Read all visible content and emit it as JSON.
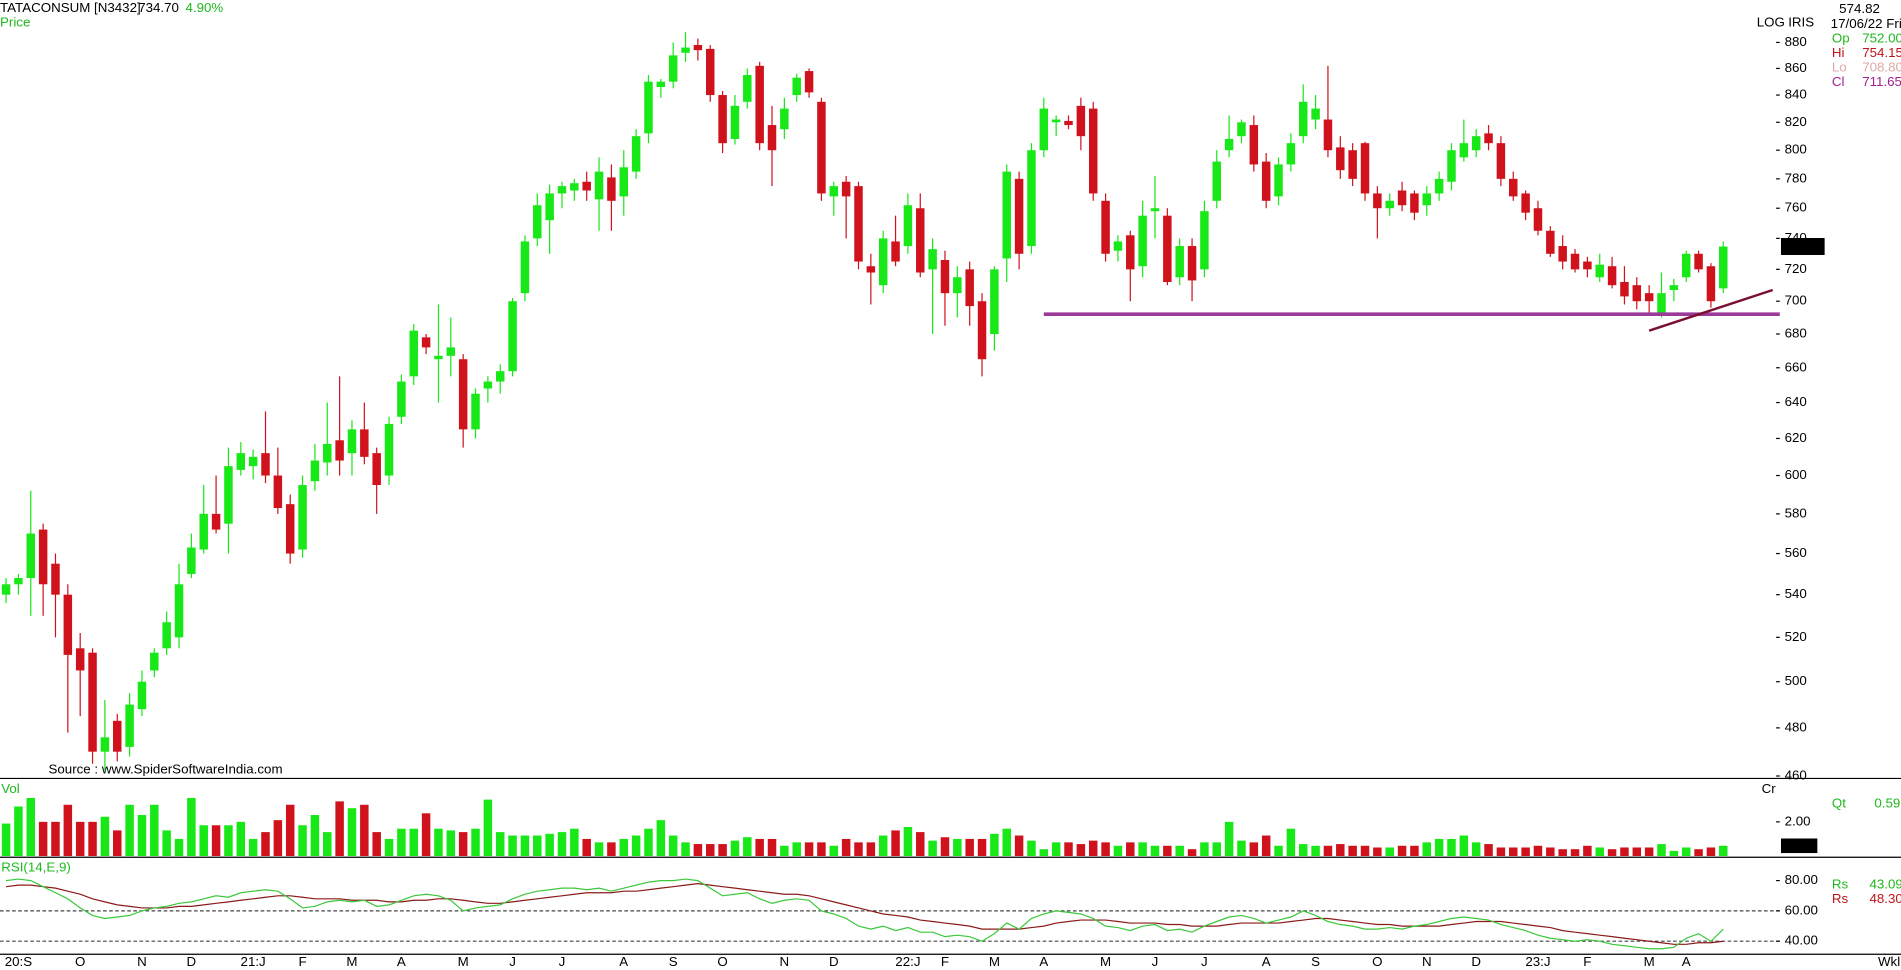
{
  "info": {
    "symbol": "TATACONSUM [N3432]",
    "last": "734.70",
    "change": "4.90%",
    "panel": "Price",
    "scale": "LOG",
    "theme": "IRIS",
    "cursor_value": "574.82",
    "date": "17/06/22 Fri",
    "fields": [
      {
        "key": "Op",
        "value": "752.00"
      },
      {
        "key": "Hi",
        "value": "754.15"
      },
      {
        "key": "Lo",
        "value": "708.80"
      },
      {
        "key": "Cl",
        "value": "711.65"
      }
    ],
    "period": "Wkl"
  },
  "chart_data": [
    {
      "type": "candlestick",
      "log": true,
      "up_color": "#18e818",
      "down_color": "#d0121c",
      "source": "Source : www.SpiderSoftwareIndia.com",
      "last_label": "734.70",
      "categories": [
        null,
        "20:S",
        null,
        null,
        null,
        null,
        "O",
        null,
        null,
        null,
        null,
        "N",
        null,
        null,
        null,
        "D",
        null,
        null,
        null,
        null,
        "21:J",
        null,
        null,
        null,
        "F",
        null,
        null,
        null,
        "M",
        null,
        null,
        null,
        "A",
        null,
        null,
        null,
        null,
        "M",
        null,
        null,
        null,
        "J",
        null,
        null,
        null,
        "J",
        null,
        null,
        null,
        null,
        "A",
        null,
        null,
        null,
        "S",
        null,
        null,
        null,
        "O",
        null,
        null,
        null,
        null,
        "N",
        null,
        null,
        null,
        "D",
        null,
        null,
        null,
        null,
        null,
        "22:J",
        null,
        null,
        "F",
        null,
        null,
        null,
        "M",
        null,
        null,
        null,
        "A",
        null,
        null,
        null,
        null,
        "M",
        null,
        null,
        null,
        "J",
        null,
        null,
        null,
        "J",
        null,
        null,
        null,
        null,
        "A",
        null,
        null,
        null,
        "S",
        null,
        null,
        null,
        null,
        "O",
        null,
        null,
        null,
        "N",
        null,
        null,
        null,
        "D",
        null,
        null,
        null,
        null,
        "23:J",
        null,
        null,
        null,
        "F",
        null,
        null,
        null,
        null,
        "M",
        null,
        null,
        "A",
        null,
        null,
        null
      ],
      "open": [
        540,
        545,
        548,
        572,
        555,
        540,
        515,
        513,
        470,
        483,
        472,
        488,
        505,
        515,
        520,
        550,
        562,
        580,
        575,
        603,
        605,
        612,
        600,
        585,
        562,
        597,
        607,
        619,
        612,
        625,
        612,
        600,
        632,
        655,
        678,
        665,
        667,
        665,
        625,
        648,
        652,
        658,
        705,
        740,
        752,
        770,
        772,
        778,
        766,
        781,
        768,
        785,
        812,
        846,
        850,
        872,
        878,
        875,
        840,
        808,
        835,
        862,
        818,
        815,
        840,
        858,
        835,
        768,
        778,
        775,
        722,
        710,
        738,
        735,
        760,
        720,
        726,
        705,
        720,
        700,
        680,
        727,
        780,
        735,
        800,
        820,
        821,
        832,
        830,
        765,
        732,
        742,
        722,
        758,
        755,
        715,
        735,
        720,
        765,
        800,
        810,
        818,
        792,
        768,
        790,
        810,
        822,
        822,
        802,
        800,
        805,
        770,
        760,
        772,
        770,
        762,
        770,
        778,
        795,
        800,
        812,
        805,
        780,
        770,
        760,
        745,
        735,
        730,
        725,
        715,
        722,
        712,
        710,
        705,
        692,
        707,
        715,
        730,
        722,
        708
      ],
      "high": [
        548,
        550,
        592,
        575,
        560,
        545,
        522,
        515,
        492,
        486,
        495,
        505,
        515,
        532,
        555,
        570,
        595,
        600,
        615,
        618,
        614,
        635,
        615,
        590,
        600,
        617,
        640,
        655,
        630,
        640,
        615,
        632,
        656,
        686,
        680,
        698,
        690,
        668,
        648,
        655,
        662,
        702,
        742,
        770,
        776,
        778,
        780,
        785,
        795,
        790,
        800,
        815,
        855,
        852,
        880,
        888,
        883,
        878,
        843,
        840,
        860,
        865,
        832,
        838,
        856,
        860,
        838,
        778,
        782,
        778,
        730,
        745,
        755,
        770,
        770,
        740,
        732,
        722,
        725,
        705,
        722,
        790,
        785,
        805,
        838,
        825,
        825,
        838,
        835,
        770,
        742,
        745,
        765,
        782,
        760,
        740,
        740,
        765,
        800,
        825,
        822,
        825,
        798,
        795,
        812,
        848,
        840,
        862,
        810,
        805,
        806,
        775,
        770,
        778,
        772,
        775,
        785,
        805,
        822,
        815,
        818,
        810,
        785,
        772,
        765,
        748,
        742,
        733,
        728,
        730,
        728,
        722,
        715,
        710,
        718,
        714,
        732,
        732,
        724,
        738
      ],
      "low": [
        536,
        540,
        530,
        530,
        520,
        478,
        485,
        465,
        462,
        466,
        468,
        485,
        502,
        512,
        515,
        548,
        560,
        570,
        560,
        600,
        598,
        596,
        580,
        555,
        558,
        592,
        600,
        600,
        600,
        606,
        580,
        595,
        628,
        650,
        668,
        640,
        655,
        615,
        620,
        640,
        645,
        655,
        700,
        735,
        730,
        760,
        765,
        765,
        745,
        745,
        755,
        780,
        805,
        838,
        845,
        865,
        866,
        835,
        798,
        804,
        830,
        800,
        775,
        808,
        835,
        838,
        765,
        755,
        740,
        720,
        698,
        705,
        722,
        730,
        715,
        680,
        685,
        690,
        685,
        655,
        670,
        712,
        720,
        730,
        795,
        810,
        815,
        800,
        765,
        725,
        725,
        700,
        715,
        740,
        710,
        710,
        700,
        715,
        760,
        795,
        805,
        785,
        760,
        762,
        785,
        805,
        815,
        795,
        780,
        775,
        765,
        740,
        755,
        758,
        752,
        755,
        765,
        772,
        792,
        795,
        800,
        775,
        765,
        752,
        742,
        728,
        720,
        718,
        715,
        712,
        708,
        698,
        695,
        692,
        690,
        700,
        712,
        718,
        696,
        705
      ],
      "close": [
        545,
        548,
        570,
        545,
        540,
        512,
        505,
        470,
        476,
        470,
        490,
        500,
        513,
        527,
        545,
        563,
        580,
        572,
        605,
        612,
        610,
        600,
        583,
        560,
        595,
        608,
        617,
        608,
        625,
        610,
        595,
        628,
        652,
        682,
        672,
        667,
        672,
        625,
        645,
        652,
        658,
        700,
        738,
        762,
        770,
        775,
        777,
        772,
        785,
        765,
        788,
        810,
        850,
        850,
        870,
        876,
        874,
        840,
        805,
        832,
        855,
        805,
        800,
        830,
        853,
        842,
        770,
        775,
        768,
        725,
        718,
        740,
        725,
        762,
        718,
        733,
        705,
        715,
        697,
        665,
        720,
        785,
        730,
        800,
        830,
        822,
        818,
        810,
        770,
        730,
        738,
        720,
        755,
        760,
        712,
        735,
        713,
        758,
        792,
        808,
        820,
        790,
        765,
        790,
        805,
        835,
        830,
        800,
        786,
        780,
        770,
        760,
        765,
        762,
        757,
        770,
        780,
        800,
        805,
        810,
        805,
        780,
        768,
        757,
        745,
        730,
        725,
        720,
        720,
        723,
        710,
        703,
        700,
        700,
        705,
        710,
        730,
        720,
        700,
        734.7
      ],
      "ylim": [
        460,
        880
      ],
      "yticks": [
        460,
        480,
        500,
        520,
        540,
        560,
        580,
        600,
        620,
        640,
        660,
        680,
        700,
        720,
        740,
        760,
        780,
        800,
        820,
        840,
        860,
        880
      ],
      "hline": {
        "value": 692,
        "from": 84,
        "color": "#9b3a9b"
      },
      "trendline": {
        "x": [
          133,
          143
        ],
        "y": [
          682,
          707
        ],
        "color": "#7a1030"
      }
    },
    {
      "type": "bar",
      "label": "Vol",
      "unit": "Cr",
      "ylim": [
        0,
        4.4
      ],
      "yticks": [
        {
          "value": 2,
          "label": "2.00"
        }
      ],
      "last": {
        "value": 0.6,
        "label": "0.60"
      },
      "readout": {
        "key": "Qt",
        "value": "0.59"
      },
      "values": [
        1.9,
        2.9,
        3.4,
        2.0,
        2.0,
        3.0,
        2.0,
        2.0,
        2.3,
        1.5,
        3.0,
        2.4,
        3.0,
        1.5,
        1.0,
        3.4,
        1.8,
        1.8,
        1.8,
        2.0,
        1.0,
        1.4,
        2.1,
        3.0,
        1.8,
        2.4,
        1.4,
        3.2,
        2.8,
        3.0,
        1.4,
        1.0,
        1.6,
        1.6,
        2.5,
        1.6,
        1.5,
        1.4,
        1.6,
        3.3,
        1.4,
        1.2,
        1.2,
        1.2,
        1.3,
        1.4,
        1.6,
        1.0,
        0.8,
        0.8,
        1.0,
        1.2,
        1.6,
        2.1,
        1.2,
        0.8,
        0.7,
        0.7,
        0.7,
        0.9,
        1.1,
        1.0,
        1.0,
        0.6,
        0.8,
        0.8,
        0.8,
        0.6,
        1.0,
        0.8,
        0.8,
        1.2,
        1.5,
        1.7,
        1.4,
        0.9,
        1.1,
        1.0,
        1.0,
        1.0,
        1.3,
        1.6,
        1.2,
        0.9,
        0.4,
        0.8,
        0.8,
        0.7,
        0.9,
        0.8,
        0.6,
        0.8,
        0.8,
        0.6,
        0.6,
        0.6,
        0.4,
        0.8,
        0.8,
        2.0,
        0.9,
        0.8,
        1.2,
        0.6,
        1.6,
        0.7,
        0.6,
        0.6,
        0.7,
        0.6,
        0.6,
        0.5,
        0.5,
        0.6,
        0.6,
        0.8,
        1.0,
        1.0,
        1.2,
        0.8,
        0.7,
        0.5,
        0.5,
        0.5,
        0.6,
        0.5,
        0.4,
        0.4,
        0.6,
        0.5,
        0.4,
        0.5,
        0.5,
        0.5,
        0.7,
        0.3,
        0.5,
        0.4,
        0.5,
        0.6
      ]
    },
    {
      "type": "line",
      "label": "RSI(14,E,9)",
      "ylim": [
        33,
        93
      ],
      "yticks": [
        {
          "value": 80,
          "label": "80.00"
        },
        {
          "value": 60,
          "label": "60.00"
        },
        {
          "value": 40,
          "label": "40.00"
        }
      ],
      "levels": [
        60,
        40
      ],
      "series": [
        {
          "name": "Rs",
          "readout": "43.09",
          "color": "#3cc83c",
          "values": [
            80,
            81,
            80,
            76,
            72,
            68,
            62,
            57,
            55,
            56,
            57,
            60,
            62,
            63,
            65,
            66,
            68,
            70,
            69,
            72,
            73,
            74,
            73,
            68,
            62,
            63,
            66,
            67,
            66,
            67,
            63,
            64,
            67,
            70,
            71,
            70,
            67,
            60,
            62,
            63,
            64,
            68,
            71,
            73,
            74,
            75,
            75,
            74,
            75,
            73,
            75,
            77,
            79,
            80,
            80,
            81,
            80,
            75,
            70,
            71,
            72,
            68,
            65,
            67,
            68,
            67,
            60,
            58,
            55,
            50,
            48,
            50,
            47,
            49,
            46,
            46,
            43,
            44,
            43,
            40,
            45,
            52,
            48,
            55,
            58,
            60,
            59,
            58,
            55,
            50,
            49,
            47,
            50,
            51,
            47,
            48,
            46,
            50,
            53,
            56,
            57,
            55,
            52,
            54,
            56,
            60,
            57,
            53,
            51,
            50,
            48,
            48,
            49,
            48,
            50,
            51,
            53,
            55,
            56,
            55,
            54,
            51,
            49,
            47,
            44,
            42,
            41,
            40,
            41,
            40,
            38,
            37,
            36,
            35,
            35,
            36,
            42,
            45,
            40,
            48
          ]
        },
        {
          "name": "Rs",
          "readout": "48.30",
          "color": "#8b1a1a",
          "values": [
            76,
            77,
            77,
            76,
            75,
            73,
            71,
            68,
            66,
            64,
            63,
            62,
            62,
            62,
            63,
            63,
            64,
            65,
            66,
            67,
            68,
            69,
            70,
            70,
            69,
            68,
            68,
            68,
            67,
            67,
            67,
            66,
            66,
            67,
            67,
            68,
            68,
            67,
            66,
            65,
            65,
            66,
            67,
            68,
            69,
            70,
            71,
            72,
            72,
            72,
            73,
            73,
            74,
            75,
            76,
            77,
            78,
            77,
            76,
            75,
            74,
            73,
            72,
            71,
            71,
            70,
            68,
            66,
            64,
            62,
            60,
            58,
            57,
            56,
            54,
            53,
            52,
            51,
            50,
            48,
            48,
            48,
            48,
            49,
            50,
            52,
            53,
            54,
            54,
            54,
            53,
            52,
            52,
            52,
            51,
            51,
            50,
            50,
            50,
            51,
            52,
            52,
            52,
            52,
            53,
            54,
            55,
            55,
            54,
            53,
            52,
            51,
            51,
            50,
            50,
            50,
            50,
            51,
            52,
            53,
            53,
            53,
            52,
            51,
            50,
            49,
            47,
            46,
            45,
            44,
            43,
            42,
            41,
            40,
            39,
            38,
            38,
            39,
            39,
            40
          ]
        }
      ]
    }
  ]
}
